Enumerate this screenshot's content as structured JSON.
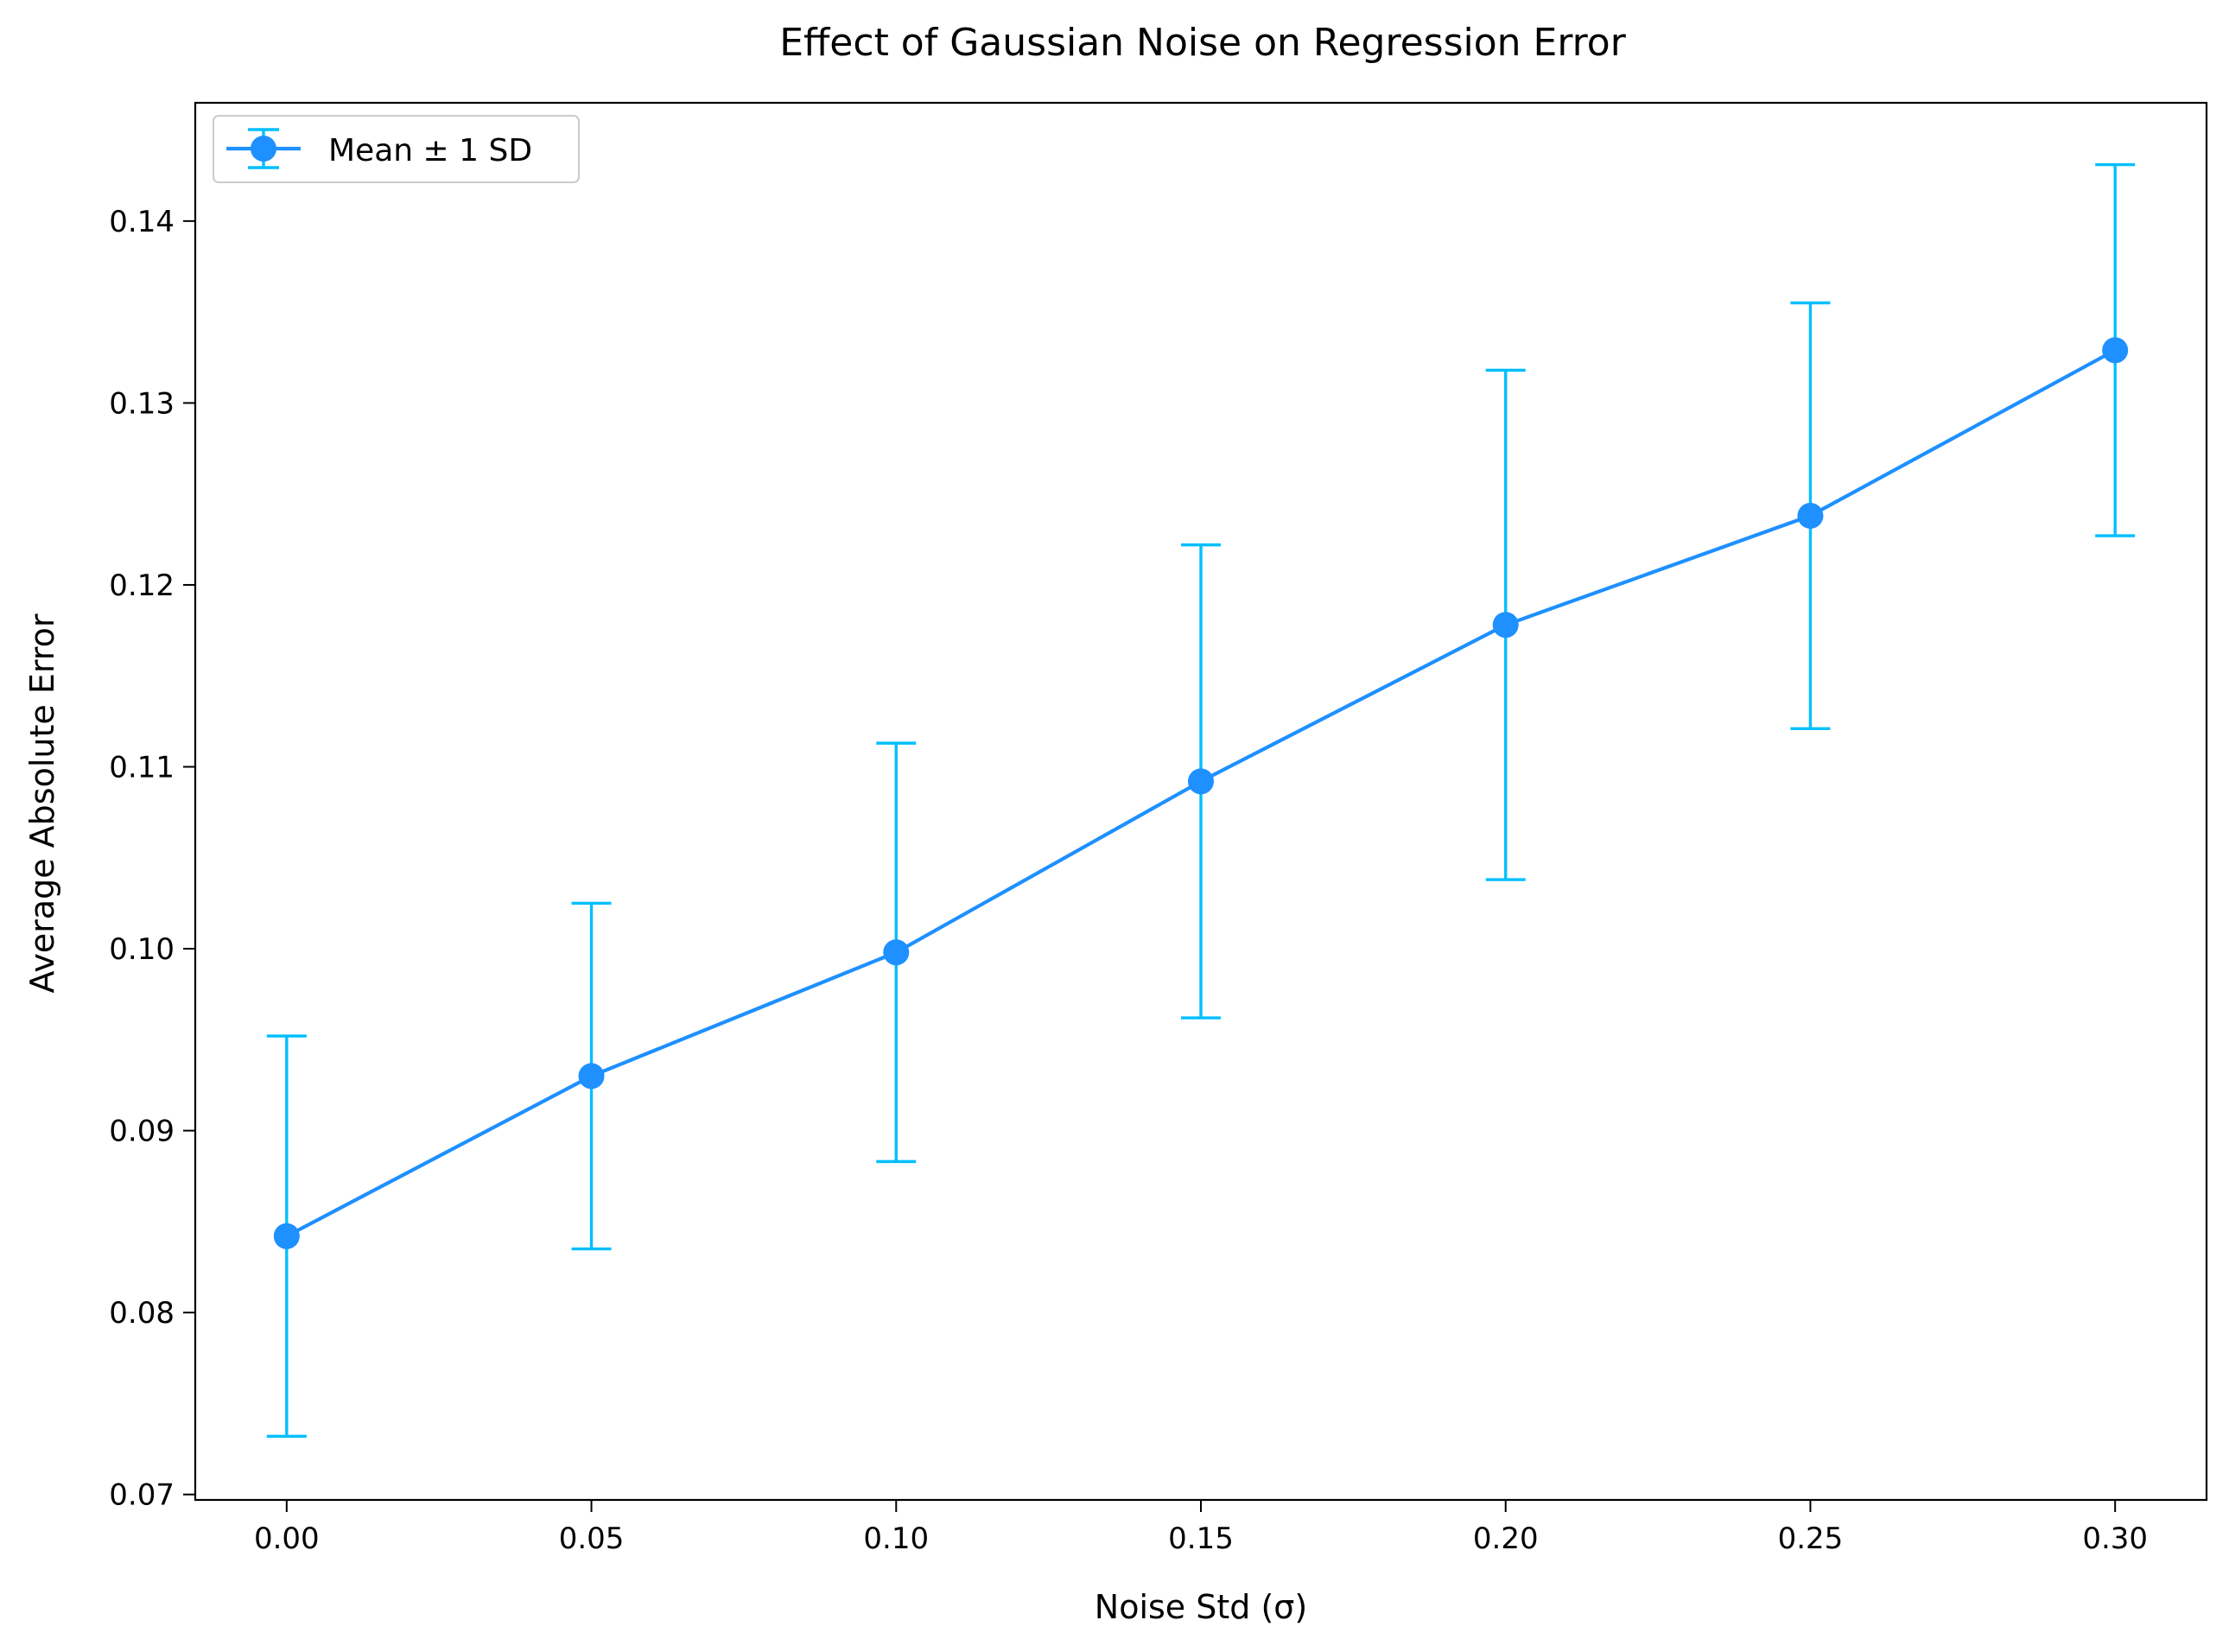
{
  "chart_data": {
    "type": "line",
    "title": "Effect of Gaussian Noise on Regression Error",
    "xlabel": "Noise Std (σ)",
    "ylabel": "Average Absolute Error",
    "xlim": [
      -0.015,
      0.315
    ],
    "ylim": [
      0.0697,
      0.1465
    ],
    "xticks": [
      0.0,
      0.05,
      0.1,
      0.15,
      0.2,
      0.25,
      0.3
    ],
    "xtick_labels": [
      "0.00",
      "0.05",
      "0.10",
      "0.15",
      "0.20",
      "0.25",
      "0.30"
    ],
    "yticks": [
      0.07,
      0.08,
      0.09,
      0.1,
      0.11,
      0.12,
      0.13,
      0.14
    ],
    "ytick_labels": [
      "0.07",
      "0.08",
      "0.09",
      "0.10",
      "0.11",
      "0.12",
      "0.13",
      "0.14"
    ],
    "grid": false,
    "legend_position": "top-left",
    "series": [
      {
        "name": "Mean ± 1 SD",
        "color": "#1E90FF",
        "errorbar_color": "#00BFFF",
        "x": [
          0.0,
          0.05,
          0.1,
          0.15,
          0.2,
          0.25,
          0.3
        ],
        "y": [
          0.0842,
          0.093,
          0.0998,
          0.1092,
          0.1178,
          0.1238,
          0.1329
        ],
        "yerr": [
          0.011,
          0.0095,
          0.0115,
          0.013,
          0.014,
          0.0117,
          0.0102
        ]
      }
    ]
  }
}
